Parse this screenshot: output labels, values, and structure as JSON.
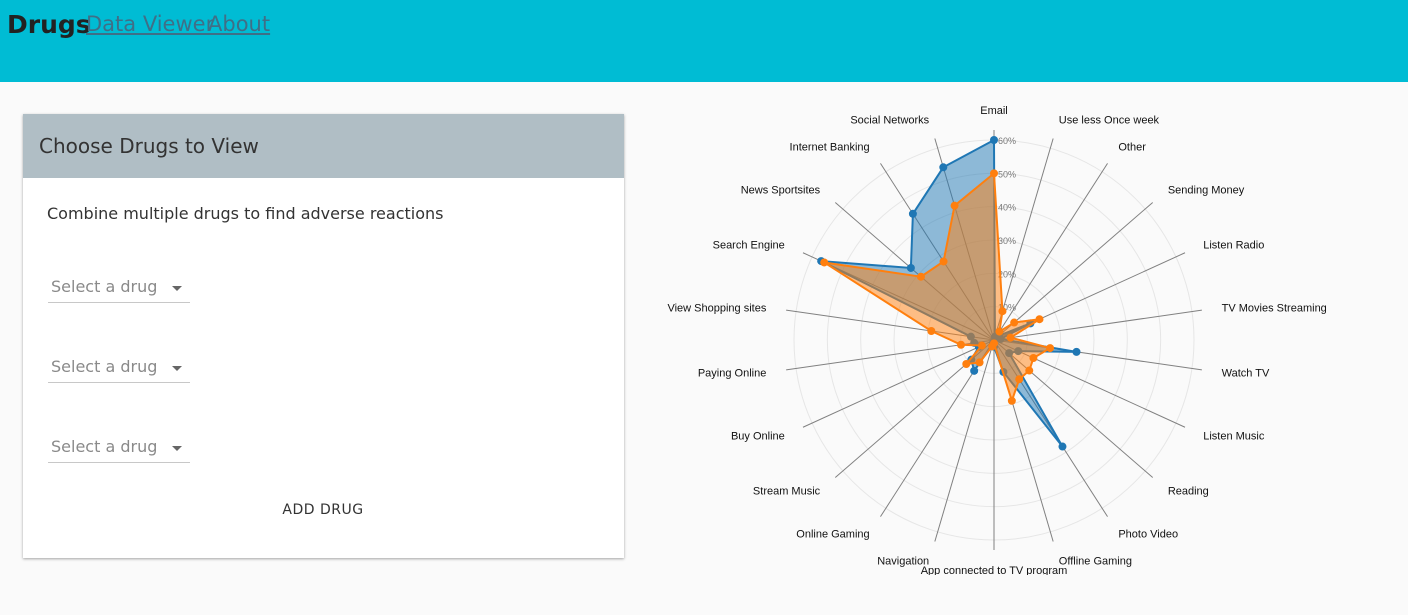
{
  "header": {
    "title": "Drugs",
    "nav": [
      {
        "label": "Data Viewer"
      },
      {
        "label": "About"
      }
    ],
    "color": "#00bcd4"
  },
  "panel": {
    "title": "Choose Drugs to View",
    "subtitle": "Combine multiple drugs to find adverse reactions",
    "selects": [
      {
        "placeholder": "Select a drug"
      },
      {
        "placeholder": "Select a drug"
      },
      {
        "placeholder": "Select a drug"
      }
    ],
    "add_button": "ADD DRUG",
    "header_color": "#b0bec5"
  },
  "chart_data": {
    "type": "radar",
    "max": 60,
    "ticks": [
      "10%",
      "20%",
      "30%",
      "40%",
      "50%",
      "60%"
    ],
    "categories": [
      "Email",
      "Use less Once week",
      "Other",
      "Sending Money",
      "Listen Radio",
      "TV Movies Streaming",
      "Watch TV",
      "Listen Music",
      "Reading",
      "Photo Video",
      "Offline Gaming",
      "App connected to TV program",
      "Navigation",
      "Online Gaming",
      "Stream Music",
      "Buy Online",
      "Paying Online",
      "View Shopping sites",
      "Search Engine",
      "News Sportsites",
      "Internet Banking",
      "Social Networks"
    ],
    "series": [
      {
        "color": "#1f77b4",
        "values": [
          60,
          1,
          3,
          2,
          12,
          2,
          25,
          8,
          6,
          38,
          10,
          2,
          1,
          11,
          9,
          5,
          6,
          7,
          57,
          33,
          45,
          54
        ]
      },
      {
        "color": "#ff7f0e",
        "values": [
          50,
          9,
          3,
          8,
          15,
          5,
          17,
          13,
          14,
          14,
          19,
          1,
          2,
          8,
          11,
          4,
          10,
          19,
          56,
          29,
          28,
          42
        ]
      }
    ]
  }
}
